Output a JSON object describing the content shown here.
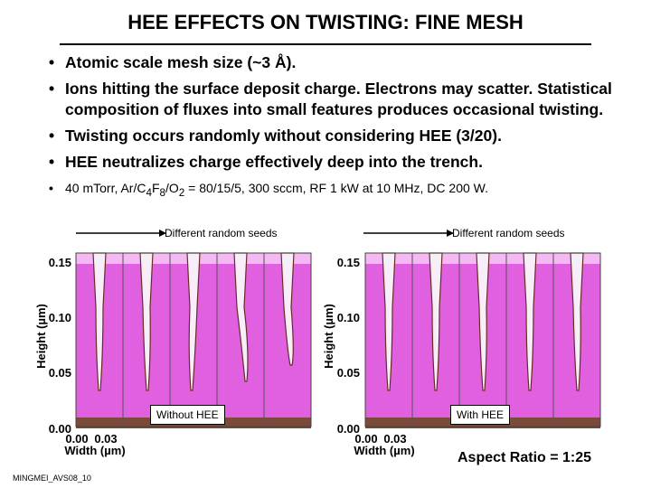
{
  "slide": {
    "title": "HEE EFFECTS ON TWISTING: FINE MESH",
    "bullets": [
      "Atomic scale mesh size (~3 Å).",
      "Ions hitting the surface deposit charge. Electrons  may scatter. Statistical composition of fluxes into small features produces occasional twisting.",
      "Twisting occurs randomly without considering HEE (3/20).",
      "HEE neutralizes charge effectively deep into the trench."
    ],
    "conditions": {
      "prefix": "40 mTorr, Ar/C",
      "sub1": "4",
      "mid1": "F",
      "sub2": "8",
      "mid2": "/O",
      "sub3": "2",
      "suffix": " = 80/15/5, 300 sccm, RF 1 kW at 10 MHz, DC 200 W."
    },
    "footer_id": "MINGMEI_AVS08_10",
    "aspect_ratio": "Aspect Ratio = 1:25"
  },
  "plots": [
    {
      "seeds_label": "Different random seeds",
      "box_label": "Without HEE",
      "ylabel": "Height (µm)",
      "xlabel": "Width (µm)",
      "yticks": [
        "0.15",
        "0.10",
        "0.05",
        "0.00"
      ],
      "xticks": [
        "0.00",
        "0.03"
      ]
    },
    {
      "seeds_label": "Different random seeds",
      "box_label": "With HEE",
      "ylabel": "Height (µm)",
      "xlabel": "Width (µm)",
      "yticks": [
        "0.15",
        "0.10",
        "0.05",
        "0.00"
      ],
      "xticks": [
        "0.00",
        "0.03"
      ]
    }
  ],
  "colors": {
    "etch_mask": "#e060e0",
    "mask_top": "#f4b8f4",
    "substrate": "#7a4a3a",
    "trench": "#f8eef8"
  }
}
